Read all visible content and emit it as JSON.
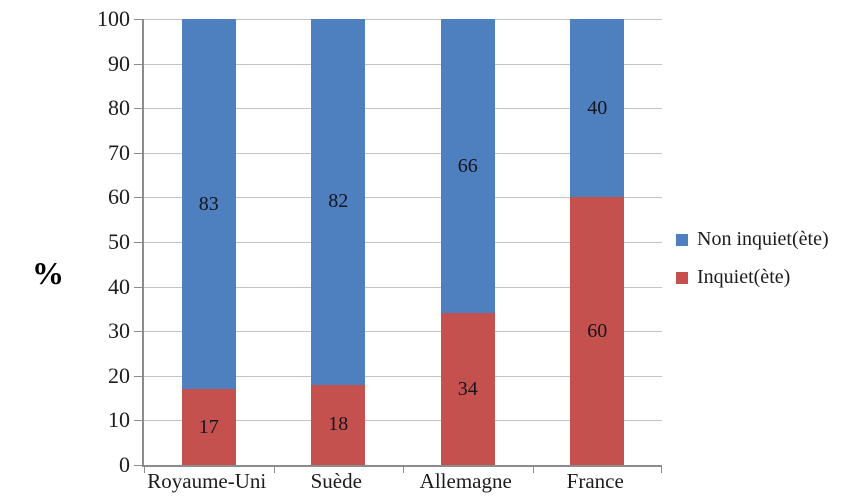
{
  "chart_data": {
    "type": "bar",
    "stacked": true,
    "title": "",
    "xlabel": "",
    "ylabel": "%",
    "categories": [
      "Royaume-Uni",
      "Suède",
      "Allemagne",
      "France"
    ],
    "series": [
      {
        "name": "Inquiet(ète)",
        "color": "#c4514e",
        "values": [
          17,
          18,
          34,
          60
        ]
      },
      {
        "name": "Non inquiet(ète)",
        "color": "#4e7fbe",
        "values": [
          83,
          82,
          66,
          40
        ]
      }
    ],
    "ylim": [
      0,
      100
    ],
    "yticks": [
      0,
      10,
      20,
      30,
      40,
      50,
      60,
      70,
      80,
      90,
      100
    ],
    "grid": true,
    "data_labels": true,
    "legend_position": "right"
  },
  "legend": {
    "items": [
      {
        "label": "Non inquiet(ète)",
        "color": "#4e7fbe"
      },
      {
        "label": "Inquiet(ète)",
        "color": "#c4514e"
      }
    ]
  },
  "colors": {
    "gridline": "#c3c3c3",
    "axis": "#8c8c8c",
    "text": "#1c1c1c"
  }
}
